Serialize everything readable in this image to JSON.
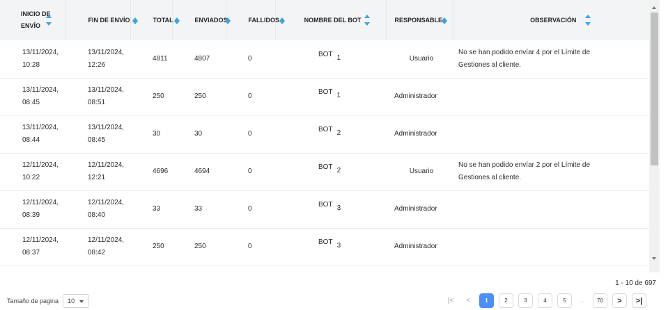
{
  "table": {
    "headers": {
      "inicio": [
        "INICIO DE",
        "ENVÍO"
      ],
      "fin": "FIN DE ENVÍO",
      "total": "TOTAL",
      "enviados": "ENVIADOS",
      "fallidos": "FALLIDOS",
      "bot": "NOMBRE DEL BOT",
      "responsable": "RESPONSABLE",
      "observacion": "OBSERVACIÓN"
    },
    "rows": [
      {
        "inicio_date": "13/11/2024,",
        "inicio_time": "10:28",
        "fin_date": "13/11/2024,",
        "fin_time": "12:26",
        "total": "4811",
        "enviados": "4807",
        "fallidos": "0",
        "bot": "BOT",
        "bot_num": "1",
        "responsable": "Usuario",
        "obs1": "No se han podido envíar 4 por el Límite de",
        "obs2": "Gestiones al cliente."
      },
      {
        "inicio_date": "13/11/2024,",
        "inicio_time": "08:45",
        "fin_date": "13/11/2024,",
        "fin_time": "08:51",
        "total": "250",
        "enviados": "250",
        "fallidos": "0",
        "bot": "BOT",
        "bot_num": "1",
        "responsable": "Administrador",
        "obs1": "",
        "obs2": ""
      },
      {
        "inicio_date": "13/11/2024,",
        "inicio_time": "08:44",
        "fin_date": "13/11/2024,",
        "fin_time": "08:45",
        "total": "30",
        "enviados": "30",
        "fallidos": "0",
        "bot": "BOT",
        "bot_num": "2",
        "responsable": "Administrador",
        "obs1": "",
        "obs2": ""
      },
      {
        "inicio_date": "12/11/2024,",
        "inicio_time": "10:22",
        "fin_date": "12/11/2024,",
        "fin_time": "12:21",
        "total": "4696",
        "enviados": "4694",
        "fallidos": "0",
        "bot": "BOT",
        "bot_num": "2",
        "responsable": "Usuario",
        "obs1": "No se han podido envíar 2 por el Límite de",
        "obs2": "Gestiones al cliente."
      },
      {
        "inicio_date": "12/11/2024,",
        "inicio_time": "08:39",
        "fin_date": "12/11/2024,",
        "fin_time": "08:40",
        "total": "33",
        "enviados": "33",
        "fallidos": "0",
        "bot": "BOT",
        "bot_num": "3",
        "responsable": "Administrador",
        "obs1": "",
        "obs2": ""
      },
      {
        "inicio_date": "12/11/2024,",
        "inicio_time": "08:37",
        "fin_date": "12/11/2024,",
        "fin_time": "08:42",
        "total": "250",
        "enviados": "250",
        "fallidos": "0",
        "bot": "BOT",
        "bot_num": "3",
        "responsable": "Administrador",
        "obs1": "",
        "obs2": ""
      }
    ]
  },
  "pagination": {
    "count_text": "1 - 10 de 697",
    "page_size_label": "Tamaño de pagina",
    "page_size_value": "10",
    "pages": [
      "1",
      "2",
      "3",
      "4",
      "5"
    ],
    "ellipsis": "...",
    "last_page": "70",
    "first_icon": "|<",
    "prev_icon": "<",
    "next_icon": ">",
    "last_icon": ">|"
  },
  "colors": {
    "accent": "#4c8ef7",
    "sort_arrow": "#3ea3dc",
    "header_bg": "#f3f4f6"
  }
}
